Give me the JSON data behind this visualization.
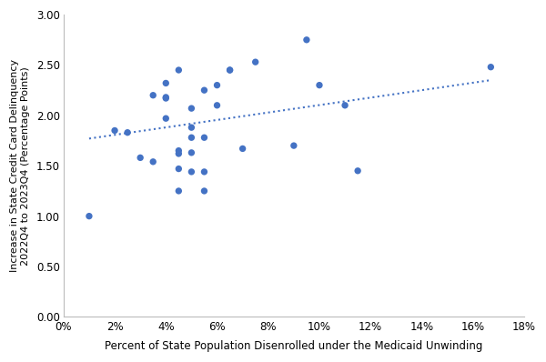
{
  "x": [
    0.01,
    0.02,
    0.025,
    0.03,
    0.035,
    0.035,
    0.04,
    0.04,
    0.04,
    0.04,
    0.045,
    0.045,
    0.045,
    0.045,
    0.045,
    0.05,
    0.05,
    0.05,
    0.05,
    0.05,
    0.055,
    0.055,
    0.055,
    0.055,
    0.06,
    0.06,
    0.065,
    0.065,
    0.07,
    0.075,
    0.09,
    0.095,
    0.1,
    0.11,
    0.115,
    0.167
  ],
  "y": [
    1.0,
    1.85,
    1.83,
    1.58,
    1.54,
    2.2,
    2.17,
    2.18,
    1.97,
    2.32,
    1.25,
    1.47,
    1.62,
    1.65,
    2.45,
    1.44,
    1.63,
    1.78,
    1.88,
    2.07,
    1.25,
    1.44,
    1.78,
    2.25,
    2.1,
    2.3,
    2.45,
    2.45,
    1.67,
    2.53,
    1.7,
    2.75,
    2.3,
    2.1,
    1.45,
    2.48
  ],
  "dot_color": "#4472C4",
  "line_color": "#4472C4",
  "line_style": "dotted",
  "line_width": 1.5,
  "marker_size": 28,
  "xlabel": "Percent of State Population Disenrolled under the Medicaid Unwinding",
  "ylabel": "Increase in State Credit Card Delinquency\n2022Q4 to 2023Q4 (Percentage Points)",
  "xlim": [
    0.0,
    0.18
  ],
  "ylim": [
    0.0,
    3.0
  ],
  "xticks": [
    0.0,
    0.02,
    0.04,
    0.06,
    0.08,
    0.1,
    0.12,
    0.14,
    0.16,
    0.18
  ],
  "yticks": [
    0.0,
    0.5,
    1.0,
    1.5,
    2.0,
    2.5,
    3.0
  ],
  "xtick_labels": [
    "0%",
    "2%",
    "4%",
    "6%",
    "8%",
    "10%",
    "12%",
    "14%",
    "16%",
    "18%"
  ],
  "ytick_labels": [
    "0.00",
    "0.50",
    "1.00",
    "1.50",
    "2.00",
    "2.50",
    "3.00"
  ],
  "figsize": [
    6.0,
    3.98
  ],
  "dpi": 100,
  "background_color": "#FFFFFF",
  "spine_color": "#BBBBBB",
  "xlabel_fontsize": 8.5,
  "ylabel_fontsize": 8,
  "tick_fontsize": 8.5,
  "trendline_x0": 0.01,
  "trendline_x1": 0.167,
  "trendline_y0": 1.77,
  "trendline_y1": 2.35
}
